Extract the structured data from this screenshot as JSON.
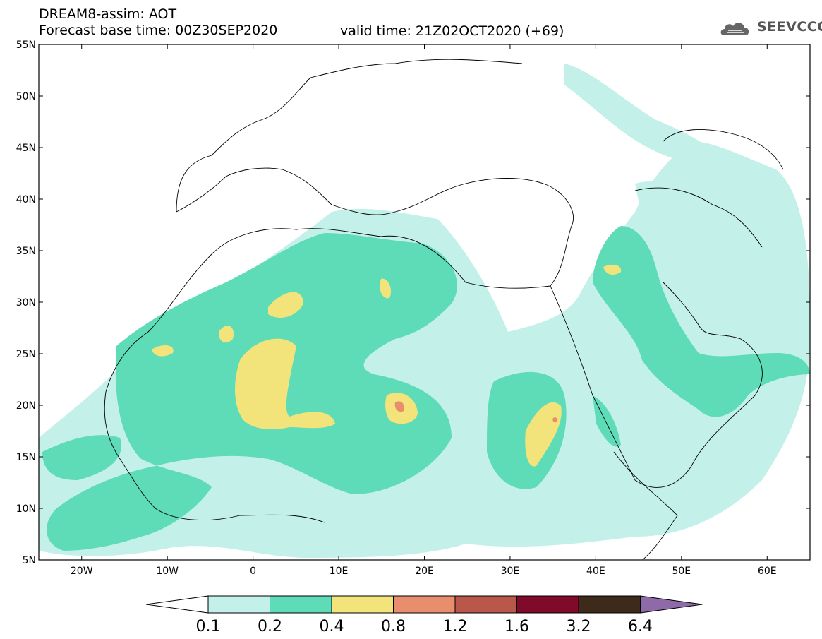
{
  "header": {
    "title": "DREAM8-assim: AOT",
    "base_time": "Forecast base time: 00Z30SEP2020",
    "valid_time": "valid time: 21Z02OCT2020 (+69)",
    "logo_text": "SEEVCCC"
  },
  "map": {
    "lon_range": [
      -25,
      65
    ],
    "lat_range": [
      5,
      55
    ],
    "lat_ticks": [
      "55N",
      "50N",
      "45N",
      "40N",
      "35N",
      "30N",
      "25N",
      "20N",
      "15N",
      "10N",
      "5N"
    ],
    "lon_ticks": [
      "20W",
      "10W",
      "0",
      "10E",
      "20E",
      "30E",
      "40E",
      "50E",
      "60E"
    ]
  },
  "colorbar": {
    "levels": [
      "0.1",
      "0.2",
      "0.4",
      "0.8",
      "1.2",
      "1.6",
      "3.2",
      "6.4"
    ],
    "colors": [
      "#c4f0ea",
      "#5ddcb7",
      "#f2e47a",
      "#e88e6c",
      "#b8574a",
      "#7f0a2a",
      "#3d2a1a",
      "#8e6aa8"
    ]
  }
}
